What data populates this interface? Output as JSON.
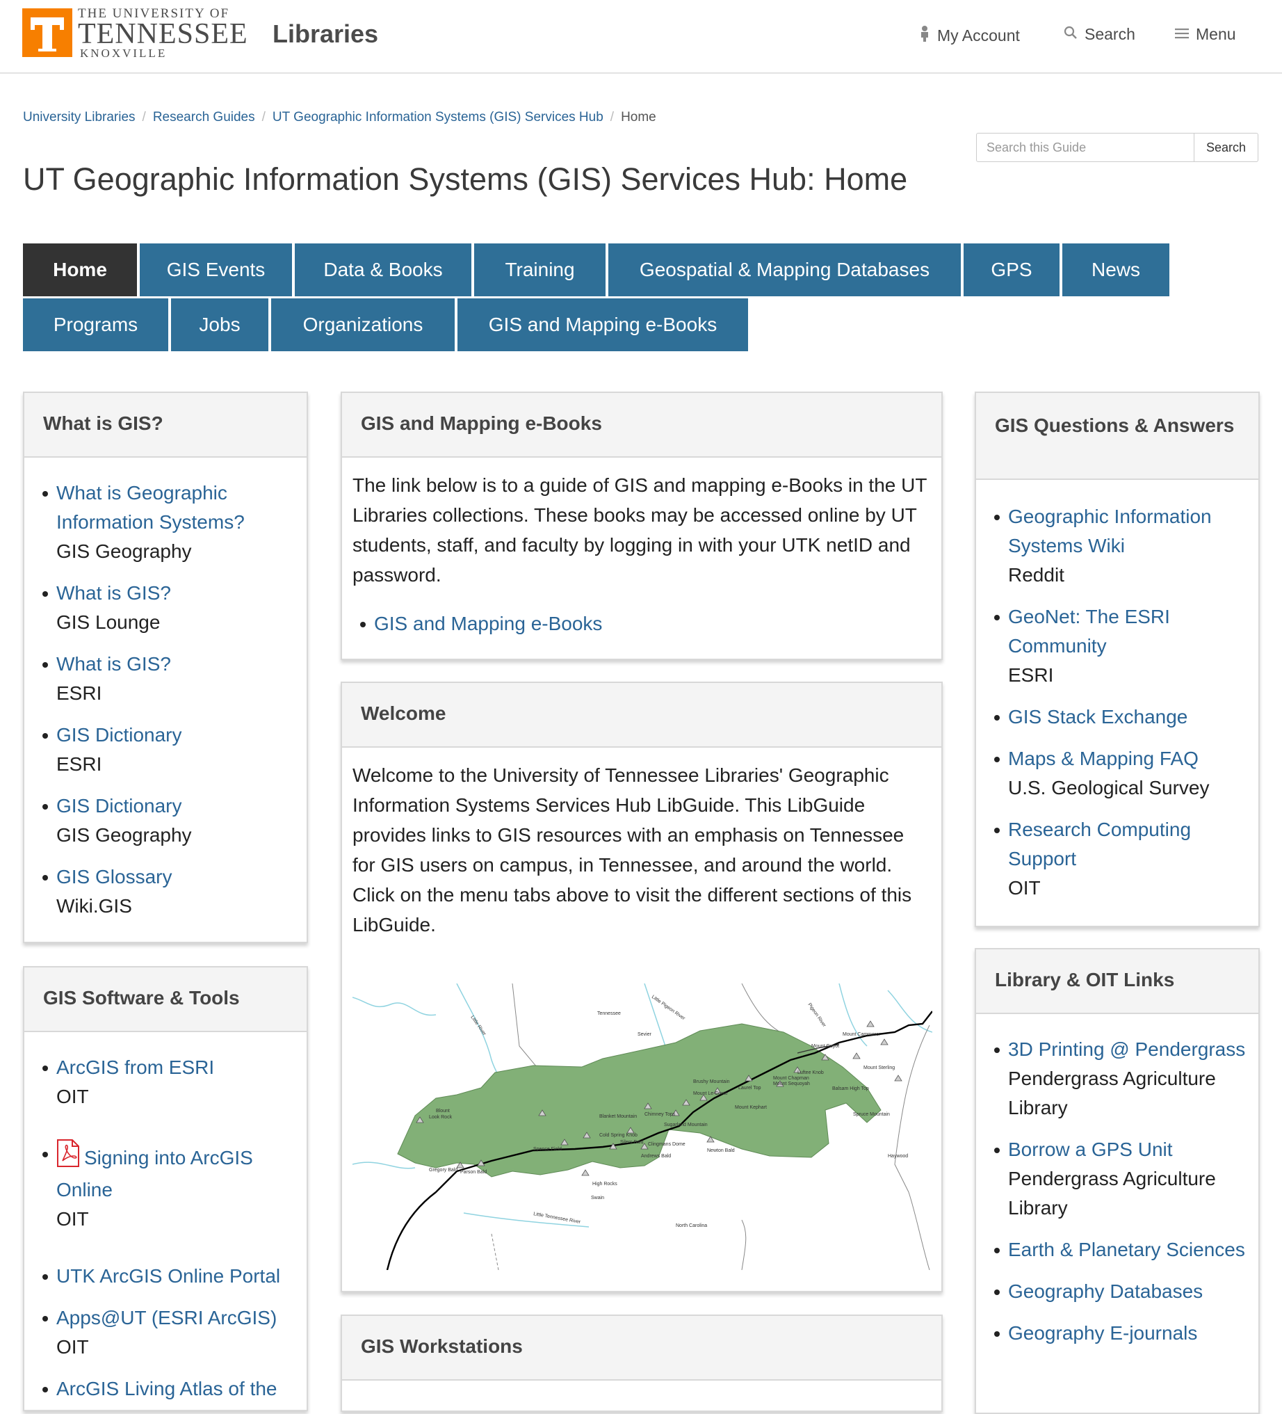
{
  "header": {
    "univ_line1": "THE UNIVERSITY OF",
    "univ_line2": "TENNESSEE",
    "univ_line3": "KNOXVILLE",
    "libraries": "Libraries",
    "my_account": "My Account",
    "search": "Search",
    "menu": "Menu"
  },
  "breadcrumb": [
    "University Libraries",
    "Research Guides",
    "UT Geographic Information Systems (GIS) Services Hub",
    "Home"
  ],
  "guide_search": {
    "placeholder": "Search this Guide",
    "button": "Search"
  },
  "page_title": "UT Geographic Information Systems (GIS) Services Hub: Home",
  "tabs": [
    "Home",
    "GIS Events",
    "Data & Books",
    "Training",
    "Geospatial & Mapping Databases",
    "GPS",
    "News",
    "Programs",
    "Jobs",
    "Organizations",
    "GIS and Mapping e-Books"
  ],
  "what_is_gis": {
    "title": "What is GIS?",
    "items": [
      {
        "link": "What is Geographic Information Systems?",
        "source": "GIS Geography"
      },
      {
        "link": "What is GIS?",
        "source": "GIS Lounge"
      },
      {
        "link": "What is GIS?",
        "source": "ESRI"
      },
      {
        "link": "GIS Dictionary",
        "source": "ESRI"
      },
      {
        "link": "GIS Dictionary",
        "source": "GIS Geography"
      },
      {
        "link": "GIS Glossary",
        "source": "Wiki.GIS"
      }
    ]
  },
  "software": {
    "title": "GIS Software & Tools",
    "items": [
      {
        "link": "ArcGIS from ESRI",
        "source": "OIT"
      },
      {
        "link": "Signing into ArcGIS Online",
        "source": "OIT"
      },
      {
        "link": "UTK ArcGIS Online Portal"
      },
      {
        "link": "Apps@UT (ESRI ArcGIS)",
        "source": "OIT"
      },
      {
        "link": "ArcGIS Living Atlas of the"
      }
    ]
  },
  "ebooks": {
    "title": "GIS and Mapping e-Books",
    "text": "The link below is to a guide of GIS and mapping e-Books in the UT Libraries collections.  These books may be accessed online by UT students, staff, and faculty by logging in with your UTK netID and password.",
    "link": "GIS and Mapping e-Books"
  },
  "welcome": {
    "title": "Welcome",
    "text": "Welcome to the University of Tennessee Libraries' Geographic Information Systems Services Hub LibGuide.  This LibGuide provides links to GIS resources with an emphasis on Tennessee for GIS users on campus, in Tennessee, and around the world.  Click on the menu tabs above to visit the different sections of this LibGuide."
  },
  "workstations": {
    "title": "GIS Workstations"
  },
  "qa": {
    "title": "GIS Questions & Answers",
    "items": [
      {
        "link": "Geographic Information Systems Wiki",
        "source": "Reddit"
      },
      {
        "link": "GeoNet: The ESRI Community",
        "source": "ESRI"
      },
      {
        "link": "GIS Stack Exchange"
      },
      {
        "link": "Maps & Mapping FAQ",
        "source": "U.S. Geological Survey"
      },
      {
        "link": "Research Computing Support",
        "source": "OIT"
      }
    ]
  },
  "library_links": {
    "title": "Library & OIT Links",
    "items": [
      {
        "link": "3D Printing @ Pendergrass",
        "source": "Pendergrass Agriculture Library"
      },
      {
        "link": "Borrow a GPS Unit",
        "source": "Pendergrass Agriculture Library"
      },
      {
        "link": "Earth & Planetary Sciences"
      },
      {
        "link": "Geography Databases"
      },
      {
        "link": "Geography E-journals"
      }
    ]
  },
  "map_labels": [
    "Tennessee",
    "Sevier",
    "Blount",
    "Haywood",
    "North Carolina",
    "Swain",
    "Little River",
    "Little Pigeon River",
    "Pigeon River",
    "Little Tennessee River",
    "Look Rock",
    "Gregory Bald",
    "Parson Bald",
    "Spence Field",
    "Cold Spring Knob",
    "Silers Bald",
    "Blanket Mountain",
    "Chimney Tops",
    "Clingmans Dome",
    "Andrews Bald",
    "Newton Bald",
    "High Rocks",
    "Mount Le Conte",
    "Brushy Mountain",
    "Laurel Top",
    "Mount Sterling",
    "Balsam High Top",
    "Spruce Mountain",
    "Mount Cammerer",
    "Luftee Knob",
    "Mount Chapman",
    "Mount Sequoyah",
    "Mount Kephart",
    "Sugarland Mountain",
    "Mount Guyot"
  ],
  "colors": {
    "brand_orange": "#f77f00",
    "tab_blue": "#2f6f97",
    "tab_active": "#333333",
    "link": "#2a6496",
    "park_green": "#82b077"
  }
}
